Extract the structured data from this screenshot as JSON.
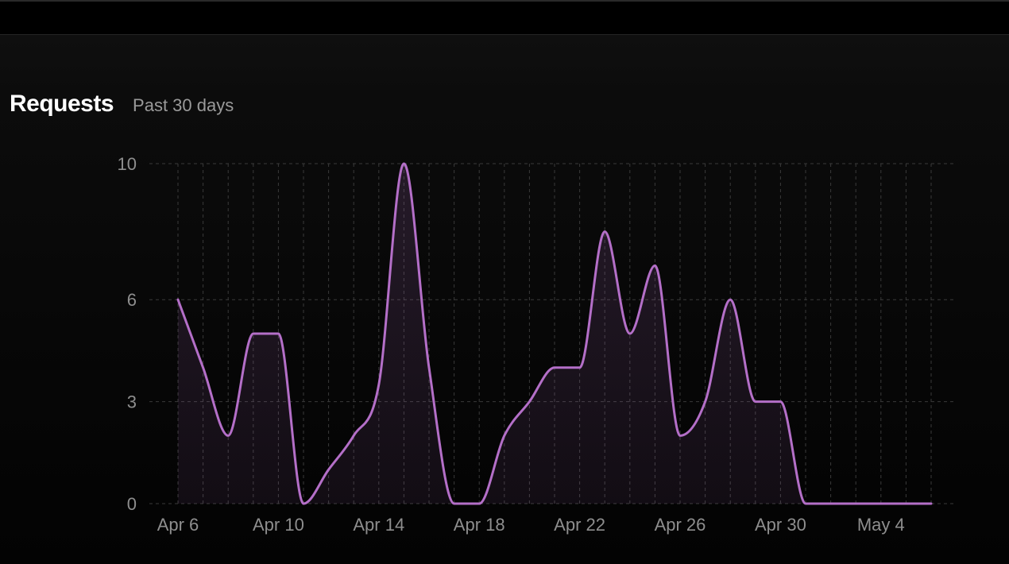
{
  "header": {
    "title": "Requests",
    "subtitle": "Past 30 days"
  },
  "colors": {
    "line": "#b46fc8",
    "grid": "#3a3a3a",
    "tick_text": "#8e8e8e",
    "title": "#ffffff",
    "subtitle": "#9a9a9a"
  },
  "chart_data": {
    "type": "area",
    "title": "Requests",
    "subtitle": "Past 30 days",
    "xlabel": "",
    "ylabel": "",
    "x": [
      "Apr 6",
      "Apr 7",
      "Apr 8",
      "Apr 9",
      "Apr 10",
      "Apr 11",
      "Apr 12",
      "Apr 13",
      "Apr 14",
      "Apr 15",
      "Apr 16",
      "Apr 17",
      "Apr 18",
      "Apr 19",
      "Apr 20",
      "Apr 21",
      "Apr 22",
      "Apr 23",
      "Apr 24",
      "Apr 25",
      "Apr 26",
      "Apr 27",
      "Apr 28",
      "Apr 29",
      "Apr 30",
      "May 1",
      "May 2",
      "May 3",
      "May 4",
      "May 5",
      "May 6"
    ],
    "series": [
      {
        "values": [
          6,
          4,
          2,
          5,
          5,
          0,
          1,
          2,
          3.5,
          10,
          4,
          0,
          0,
          2,
          3,
          4,
          4,
          8,
          5,
          7,
          2,
          3,
          6,
          3,
          3,
          0,
          0,
          0,
          0,
          0,
          0
        ]
      }
    ],
    "ylim": [
      0,
      10
    ],
    "y_ticks": [
      "0",
      "3",
      "6",
      "10"
    ],
    "x_tick_labels": [
      "Apr 6",
      "Apr 10",
      "Apr 14",
      "Apr 18",
      "Apr 22",
      "Apr 26",
      "Apr 30",
      "May 4"
    ],
    "grid": true
  }
}
